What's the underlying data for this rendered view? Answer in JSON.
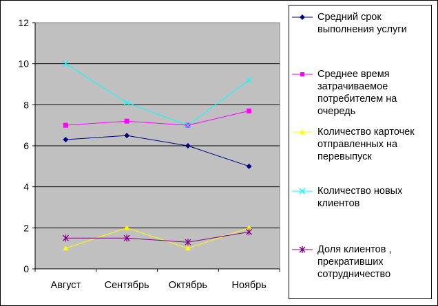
{
  "chart_data": {
    "type": "line",
    "categories": [
      "Август",
      "Сентябрь",
      "Октябрь",
      "Ноябрь"
    ],
    "ylim": [
      0,
      12
    ],
    "yticks": [
      "0",
      "2",
      "4",
      "6",
      "8",
      "10",
      "12"
    ],
    "grid": true,
    "legend_position": "right",
    "plot_background": "#c0c0c0",
    "series": [
      {
        "name": "Средний срок выполнения услуги",
        "color": "#000080",
        "marker": "diamond",
        "values": [
          6.3,
          6.5,
          6.0,
          5.0
        ]
      },
      {
        "name": "Среднее время затрачиваемое потребителем на очередь",
        "color": "#ff00ff",
        "marker": "square",
        "values": [
          7.0,
          7.2,
          7.0,
          7.7
        ]
      },
      {
        "name": "Количество карточек отправленных на перевыпуск",
        "color": "#ffff00",
        "marker": "triangle",
        "values": [
          1.0,
          2.0,
          1.0,
          2.0
        ]
      },
      {
        "name": "  Количество новых клиентов",
        "color": "#00ffff",
        "marker": "x",
        "values": [
          10.0,
          8.1,
          7.0,
          9.2
        ]
      },
      {
        "name": "Доля клиентов , прекративших сотрудничество",
        "color": "#800080",
        "marker": "star",
        "values": [
          1.5,
          1.5,
          1.3,
          1.8
        ]
      }
    ]
  },
  "legend": {
    "items": [
      {
        "label": "Средний срок\nвыполнения услуги"
      },
      {
        "label": "Среднее время\nзатрачиваемое\nпотребителем на\nочередь"
      },
      {
        "label": "Количество карточек\nотправленных на\nперевыпуск"
      },
      {
        "label": "  Количество новых\nклиентов"
      },
      {
        "label": "Доля клиентов ,\nпрекративших\nсотрудничество"
      }
    ]
  }
}
